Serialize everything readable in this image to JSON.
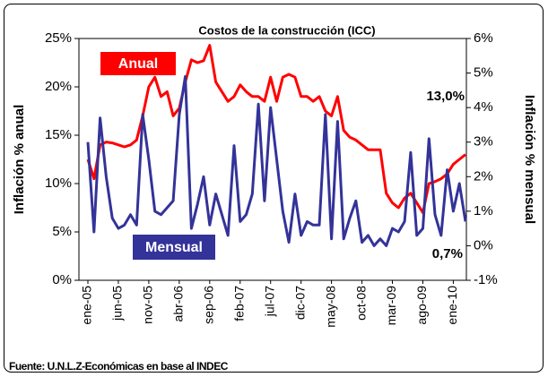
{
  "chart_data": {
    "type": "line",
    "title": "Costos de la construcción (ICC)",
    "y_label": "Inflación % anual",
    "y2_label": "Inflación % mensual",
    "source": "Fuente: U.N.L.Z-Económicas en base al INDEC",
    "annotations": [
      "13,0%",
      "0,7%"
    ],
    "categories": [
      "ene-05",
      null,
      null,
      null,
      null,
      "jun-05",
      null,
      null,
      null,
      null,
      "nov-05",
      null,
      null,
      null,
      null,
      "abr-06",
      null,
      null,
      null,
      null,
      "sep-06",
      null,
      null,
      null,
      null,
      "feb-07",
      null,
      null,
      null,
      null,
      "jul-07",
      null,
      null,
      null,
      null,
      "dic-07",
      null,
      null,
      null,
      null,
      "may-08",
      null,
      null,
      null,
      null,
      "oct-08",
      null,
      null,
      null,
      null,
      "mar-09",
      null,
      null,
      null,
      null,
      "ago-09",
      null,
      null,
      null,
      null,
      "ene-10",
      null,
      null
    ],
    "series": [
      {
        "name": "Anual",
        "color": "#ff0000",
        "axis": "y",
        "values": [
          12.5,
          10.5,
          14,
          14.3,
          14.2,
          14,
          13.8,
          14,
          14.5,
          17,
          20,
          21,
          19,
          19.5,
          17,
          17.8,
          20.5,
          22.8,
          22.5,
          22.7,
          24.3,
          20.5,
          19.5,
          18.5,
          19,
          20.2,
          19.5,
          19,
          19,
          18.5,
          21,
          18.5,
          21,
          21.3,
          21,
          19,
          19,
          18.5,
          19,
          17.5,
          17,
          19,
          15.5,
          14.8,
          14.5,
          14,
          13.5,
          13.5,
          13.5,
          9,
          8,
          7.5,
          8.5,
          9,
          8,
          7,
          10,
          10.2,
          10.5,
          11,
          12,
          12.5,
          13.0
        ]
      },
      {
        "name": "Mensual",
        "color": "#333399",
        "axis": "y2",
        "values": [
          3.0,
          0.4,
          3.7,
          2.0,
          0.8,
          0.5,
          0.6,
          0.9,
          0.6,
          3.8,
          2.5,
          1.0,
          0.9,
          1.1,
          1.3,
          3.8,
          4.9,
          0.5,
          1.2,
          2.0,
          0.6,
          1.5,
          0.9,
          0.3,
          2.9,
          0.7,
          0.9,
          1.5,
          4.1,
          1.3,
          4.0,
          2.5,
          1.0,
          0.1,
          1.5,
          0.3,
          0.7,
          0.6,
          0.6,
          3.8,
          0.2,
          3.6,
          0.2,
          0.8,
          1.3,
          0.1,
          0.3,
          0.0,
          0.2,
          0.0,
          0.5,
          0.4,
          0.7,
          2.7,
          0.3,
          0.5,
          3.1,
          0.9,
          0.3,
          2.2,
          1.0,
          1.8,
          0.7
        ]
      }
    ],
    "ylim": [
      0,
      25
    ],
    "yticks": [
      {
        "value": 0,
        "label": "0%"
      },
      {
        "value": 5,
        "label": "5%"
      },
      {
        "value": 10,
        "label": "10%"
      },
      {
        "value": 15,
        "label": "15%"
      },
      {
        "value": 20,
        "label": "20%"
      },
      {
        "value": 25,
        "label": "25%"
      }
    ],
    "y2lim": [
      -1,
      6
    ],
    "y2ticks": [
      {
        "value": -1,
        "label": "-1%"
      },
      {
        "value": 0,
        "label": "0%"
      },
      {
        "value": 1,
        "label": "1%"
      },
      {
        "value": 2,
        "label": "2%"
      },
      {
        "value": 3,
        "label": "3%"
      },
      {
        "value": 4,
        "label": "4%"
      },
      {
        "value": 5,
        "label": "5%"
      },
      {
        "value": 6,
        "label": "6%"
      }
    ],
    "grid": false
  }
}
